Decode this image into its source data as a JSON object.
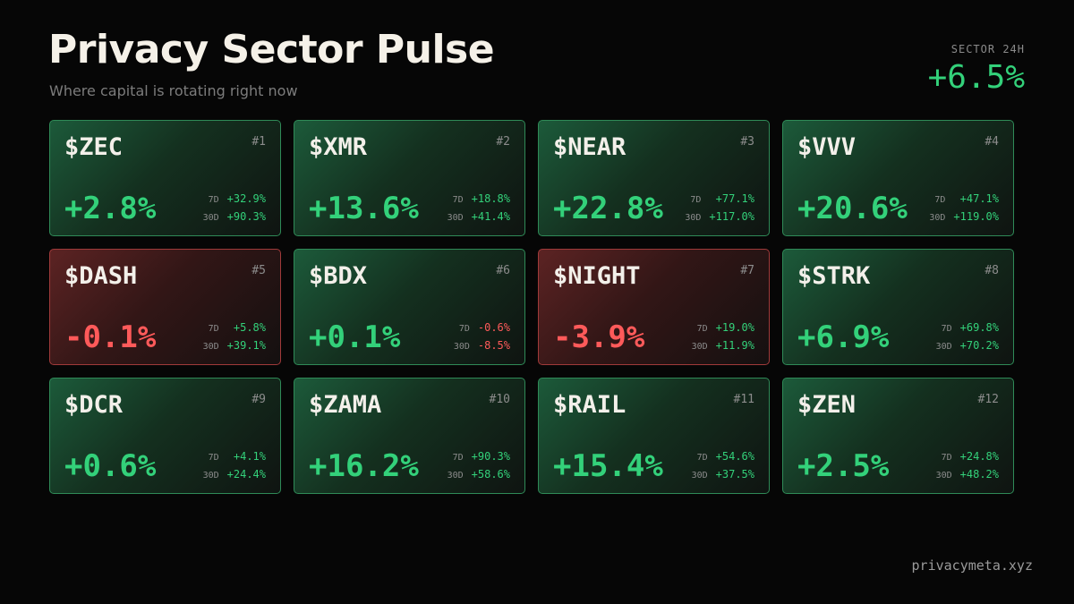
{
  "header": {
    "title": "Privacy Sector Pulse",
    "subtitle": "Where capital is rotating right now",
    "sector_label": "SECTOR 24H",
    "sector_change": "+6.5%"
  },
  "cards": [
    {
      "ticker": "$ZEC",
      "rank": "#1",
      "change": "+2.8%",
      "label_7d": "7D",
      "change_7d": "+32.9%",
      "label_30d": "30D",
      "change_30d": "+90.3%"
    },
    {
      "ticker": "$XMR",
      "rank": "#2",
      "change": "+13.6%",
      "label_7d": "7D",
      "change_7d": "+18.8%",
      "label_30d": "30D",
      "change_30d": "+41.4%"
    },
    {
      "ticker": "$NEAR",
      "rank": "#3",
      "change": "+22.8%",
      "label_7d": "7D",
      "change_7d": "+77.1%",
      "label_30d": "30D",
      "change_30d": "+117.0%"
    },
    {
      "ticker": "$VVV",
      "rank": "#4",
      "change": "+20.6%",
      "label_7d": "7D",
      "change_7d": "+47.1%",
      "label_30d": "30D",
      "change_30d": "+119.0%"
    },
    {
      "ticker": "$DASH",
      "rank": "#5",
      "change": "-0.1%",
      "label_7d": "7D",
      "change_7d": "+5.8%",
      "label_30d": "30D",
      "change_30d": "+39.1%"
    },
    {
      "ticker": "$BDX",
      "rank": "#6",
      "change": "+0.1%",
      "label_7d": "7D",
      "change_7d": "-0.6%",
      "label_30d": "30D",
      "change_30d": "-8.5%"
    },
    {
      "ticker": "$NIGHT",
      "rank": "#7",
      "change": "-3.9%",
      "label_7d": "7D",
      "change_7d": "+19.0%",
      "label_30d": "30D",
      "change_30d": "+11.9%"
    },
    {
      "ticker": "$STRK",
      "rank": "#8",
      "change": "+6.9%",
      "label_7d": "7D",
      "change_7d": "+69.8%",
      "label_30d": "30D",
      "change_30d": "+70.2%"
    },
    {
      "ticker": "$DCR",
      "rank": "#9",
      "change": "+0.6%",
      "label_7d": "7D",
      "change_7d": "+4.1%",
      "label_30d": "30D",
      "change_30d": "+24.4%"
    },
    {
      "ticker": "$ZAMA",
      "rank": "#10",
      "change": "+16.2%",
      "label_7d": "7D",
      "change_7d": "+90.3%",
      "label_30d": "30D",
      "change_30d": "+58.6%"
    },
    {
      "ticker": "$RAIL",
      "rank": "#11",
      "change": "+15.4%",
      "label_7d": "7D",
      "change_7d": "+54.6%",
      "label_30d": "30D",
      "change_30d": "+37.5%"
    },
    {
      "ticker": "$ZEN",
      "rank": "#12",
      "change": "+2.5%",
      "label_7d": "7D",
      "change_7d": "+24.8%",
      "label_30d": "30D",
      "change_30d": "+48.2%"
    }
  ],
  "footer": {
    "site": "privacymeta.xyz"
  }
}
